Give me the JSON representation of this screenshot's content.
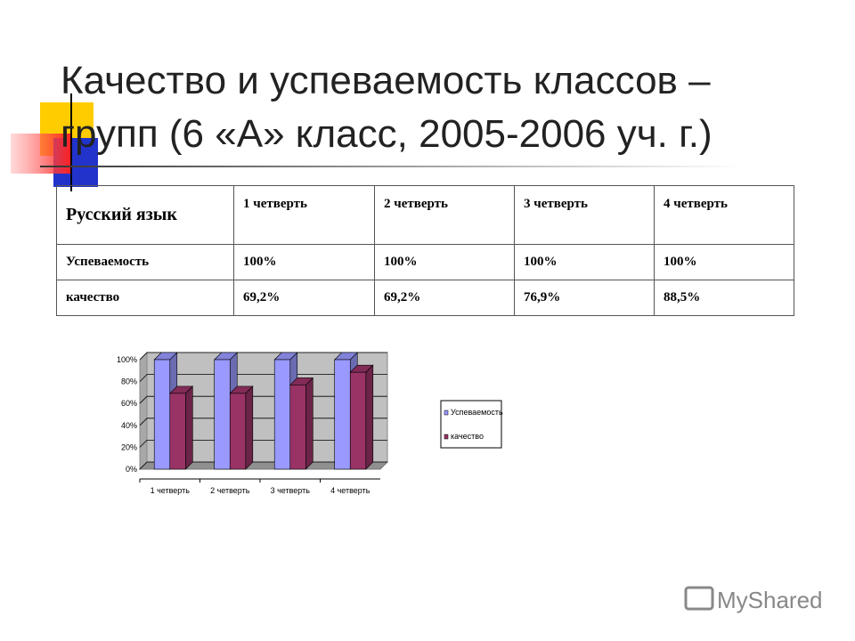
{
  "title": [
    "Качество и успеваемость классов –",
    "групп  (6 «А» класс, 2005-2006 уч. г.)"
  ],
  "table": {
    "header": [
      "Русский язык",
      "1 четверть",
      "2 четверть",
      "3 четверть",
      "4 четверть"
    ],
    "rows": [
      [
        "Успеваемость",
        "100%",
        "100%",
        "100%",
        "100%"
      ],
      [
        "качество",
        "69,2%",
        "69,2%",
        "76,9%",
        "88,5%"
      ]
    ]
  },
  "chart_data": {
    "type": "bar",
    "categories": [
      "1 четверть",
      "2 четверть",
      "3 четверть",
      "4 четверть"
    ],
    "series": [
      {
        "name": "Успеваемость",
        "color": "#9999ff",
        "values": [
          100,
          100,
          100,
          100
        ]
      },
      {
        "name": "качество",
        "color": "#993366",
        "values": [
          69.2,
          69.2,
          76.9,
          88.5
        ]
      }
    ],
    "ylim": [
      0,
      100
    ],
    "yticks": [
      {
        "value": 0,
        "label": "0%"
      },
      {
        "value": 20,
        "label": "20%"
      },
      {
        "value": 40,
        "label": "40%"
      },
      {
        "value": 60,
        "label": "60%"
      },
      {
        "value": 80,
        "label": "80%"
      },
      {
        "value": 100,
        "label": "100%"
      }
    ],
    "grid": true,
    "legend": "right"
  },
  "watermark": "MyShared"
}
